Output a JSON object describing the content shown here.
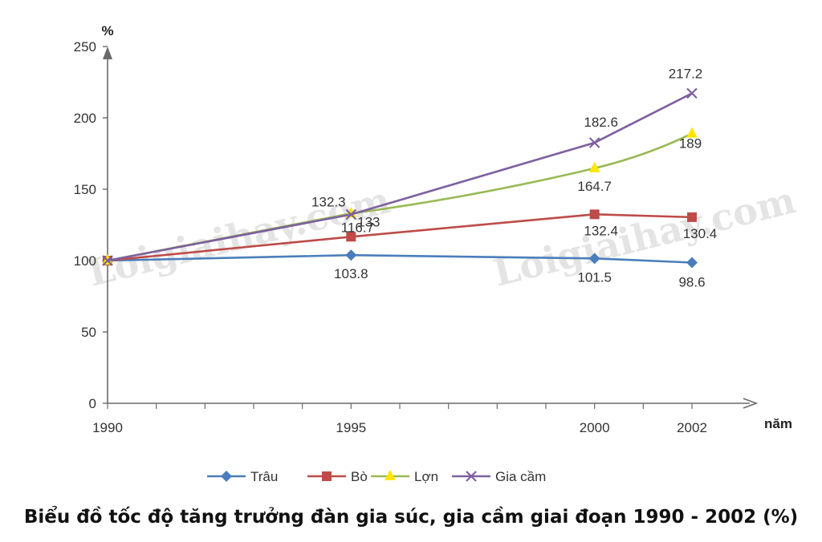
{
  "chart_data": {
    "type": "line",
    "title": "Biểu đồ tốc độ tăng trưởng đàn gia súc, gia cầm giai đoạn 1990 - 2002 (%)",
    "ylabel": "%",
    "xlabel": "năm",
    "x": [
      1990,
      1995,
      2000,
      2002
    ],
    "x_tick_labels": [
      "1990",
      "1995",
      "2000",
      "2002"
    ],
    "ylim": [
      0,
      250
    ],
    "y_ticks": [
      0,
      50,
      100,
      150,
      200,
      250
    ],
    "series": [
      {
        "name": "Trâu",
        "values": [
          100,
          103.8,
          101.5,
          98.6
        ],
        "labels": [
          "",
          "103.8",
          "101.5",
          "98.6"
        ],
        "color": "#4a7ebb",
        "marker": "diamond"
      },
      {
        "name": "Bò",
        "values": [
          100,
          116.7,
          132.4,
          130.4
        ],
        "labels": [
          "",
          "116.7",
          "132.4",
          "130.4"
        ],
        "color": "#be4b48",
        "marker": "square"
      },
      {
        "name": "Lợn",
        "values": [
          100,
          133,
          164.7,
          189
        ],
        "labels": [
          "",
          "133",
          "164.7",
          "189"
        ],
        "color": "#98b954",
        "marker_color": "#ffe600",
        "marker": "triangle"
      },
      {
        "name": "Gia cầm",
        "values": [
          100,
          132.3,
          182.6,
          217.2
        ],
        "labels": [
          "",
          "132.3",
          "182.6",
          "217.2"
        ],
        "color": "#7d60a0",
        "marker": "x"
      }
    ],
    "legend": "bottom"
  },
  "watermark": {
    "text": "Loigiaihay.com"
  }
}
